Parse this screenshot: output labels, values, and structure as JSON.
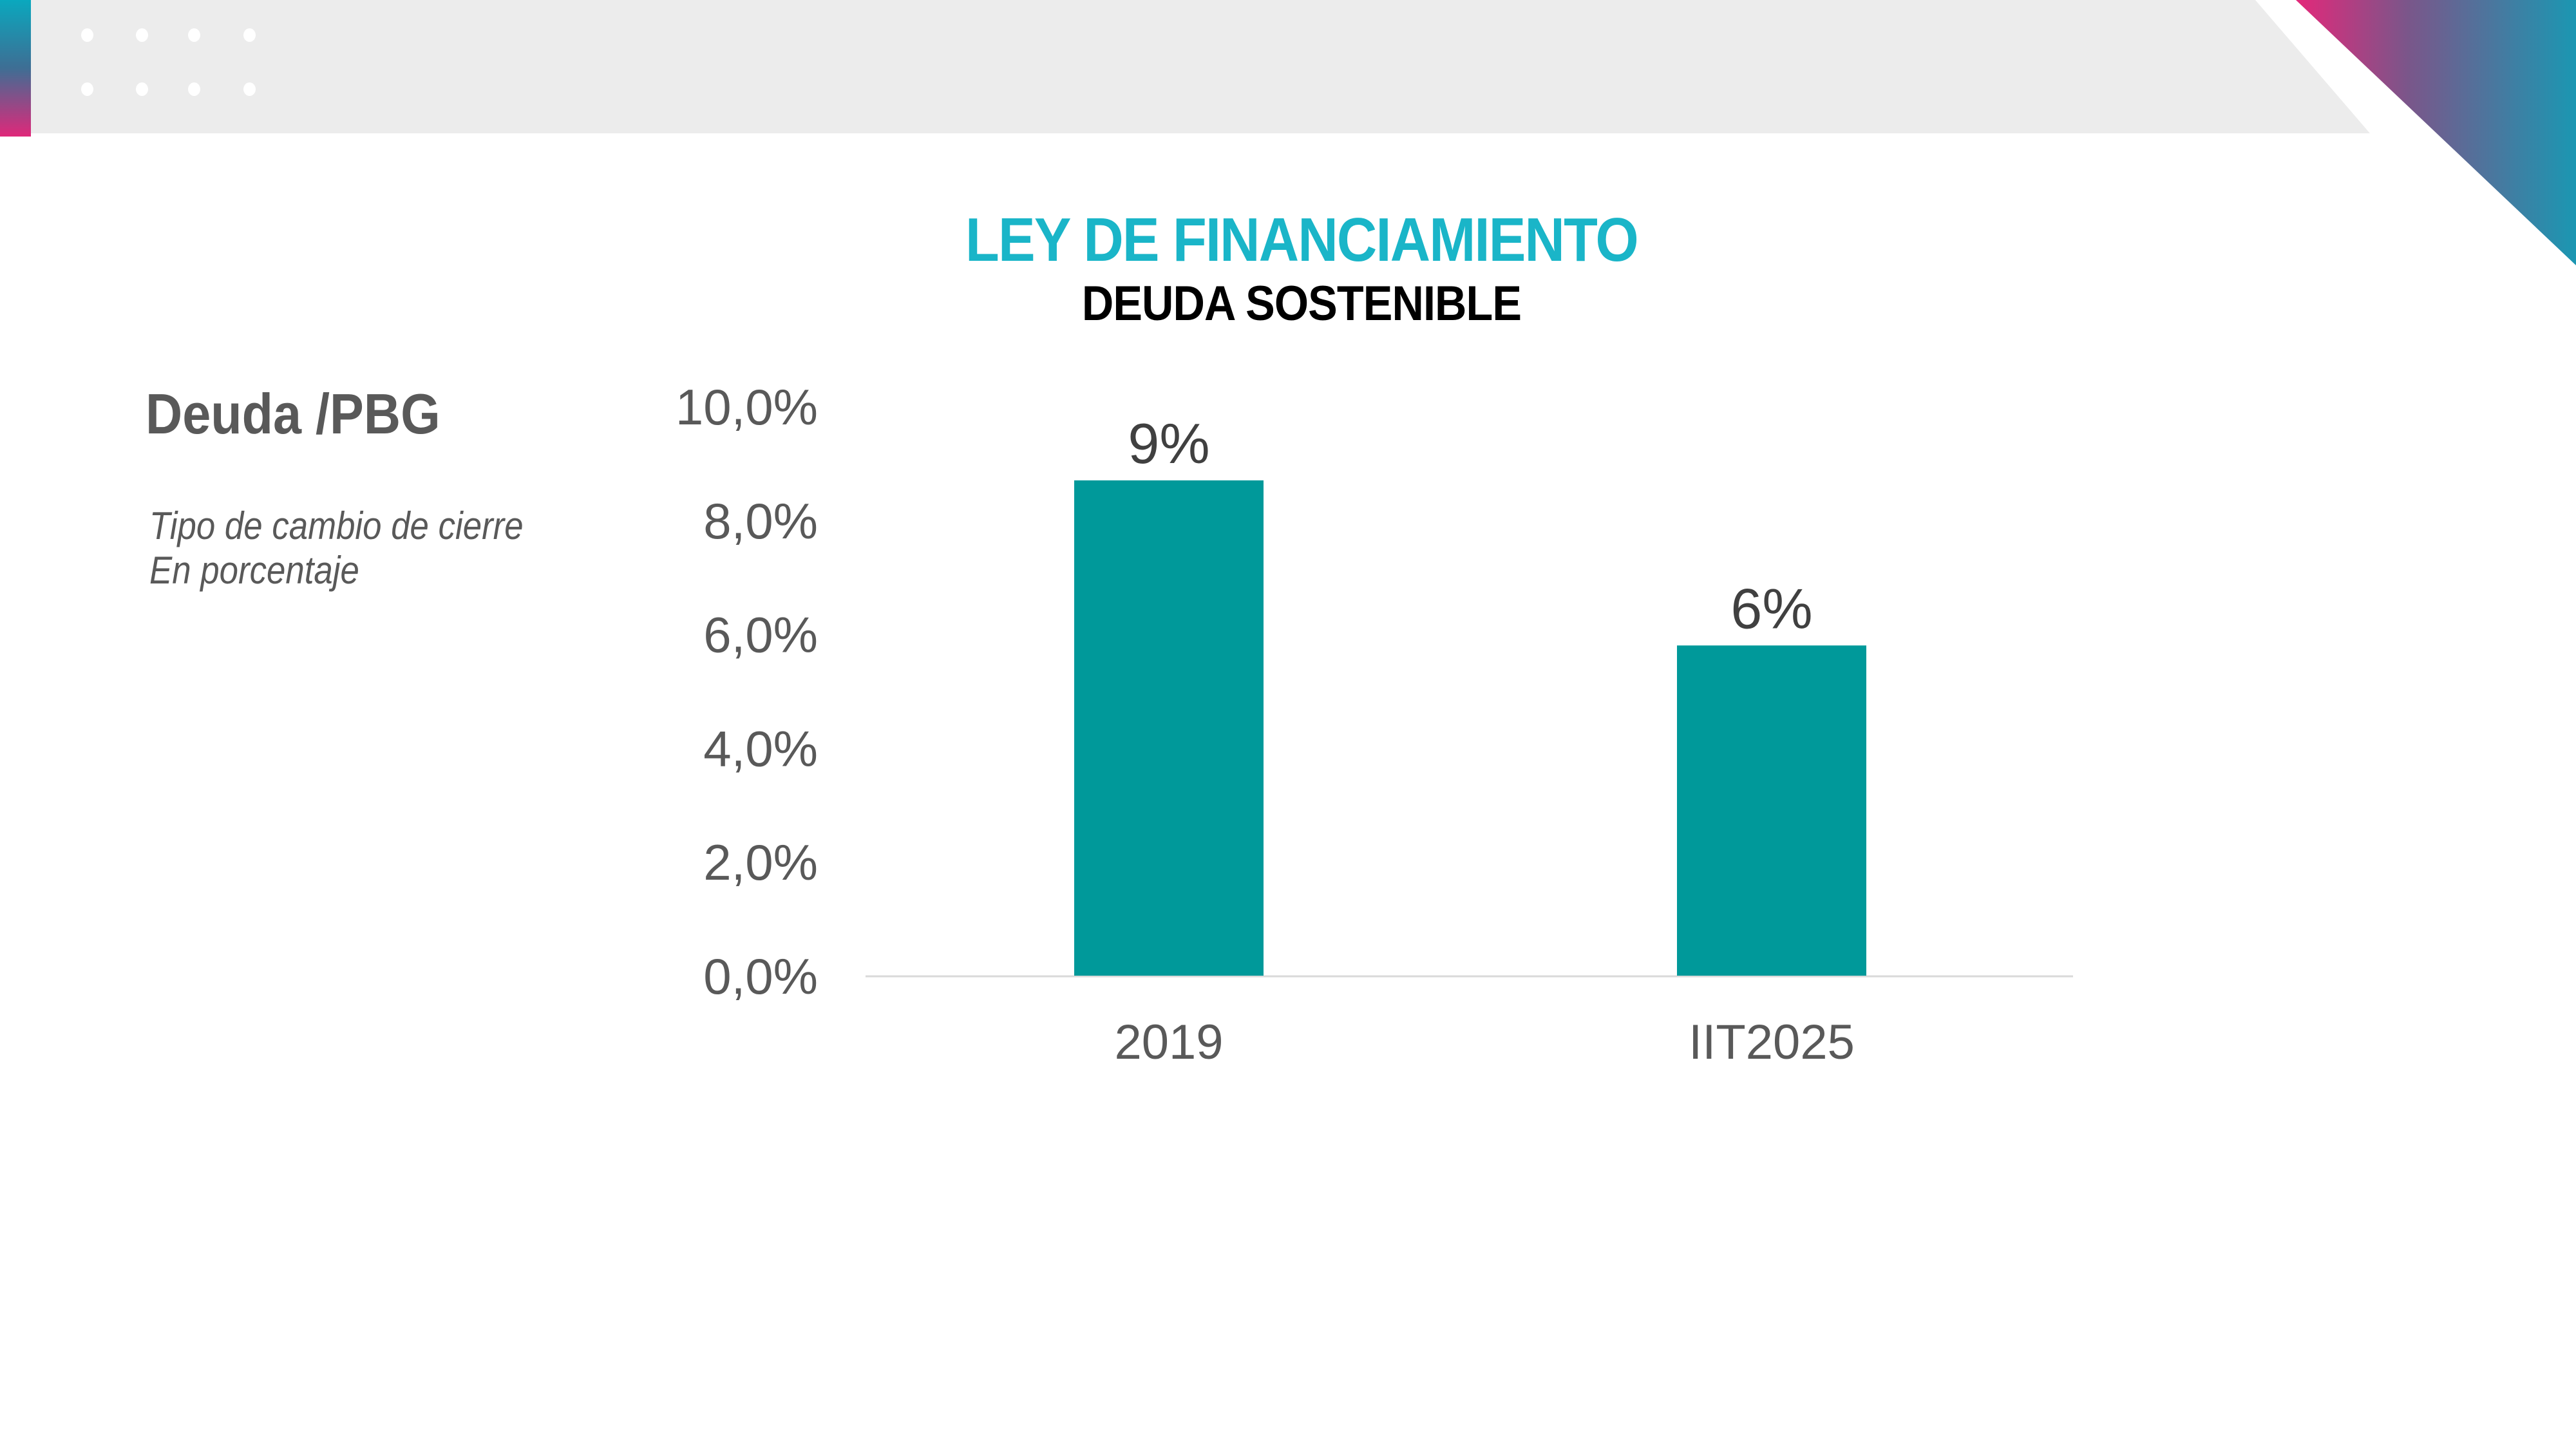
{
  "slide": {
    "title": "LEY DE FINANCIAMIENTO",
    "subtitle": "DEUDA SOSTENIBLE",
    "side_title": "Deuda /PBG",
    "side_notes": [
      "Tipo de cambio de cierre",
      "En porcentaje"
    ]
  },
  "colors": {
    "title": "#1AB5C8",
    "bar": "#00999A",
    "accent_gradient": [
      "#0AA8BE",
      "#E0287A"
    ],
    "header_band": "#ECECEC",
    "text_gray": "#595959"
  },
  "chart_data": {
    "type": "bar",
    "title": "Deuda /PBG",
    "subtitle": "Tipo de cambio de cierre — En porcentaje",
    "categories": [
      "2019",
      "IIT2025"
    ],
    "values": [
      8.7,
      5.8
    ],
    "data_labels": [
      "9%",
      "6%"
    ],
    "xlabel": "",
    "ylabel": "",
    "ylim": [
      0,
      10
    ],
    "yticks": [
      0,
      2,
      4,
      6,
      8,
      10
    ],
    "ytick_labels": [
      "0,0%",
      "2,0%",
      "4,0%",
      "6,0%",
      "8,0%",
      "10,0%"
    ],
    "grid": false,
    "legend": "none"
  }
}
